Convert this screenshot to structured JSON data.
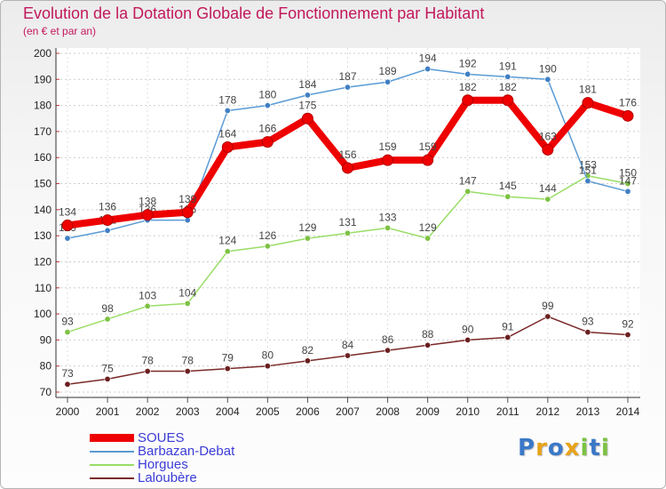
{
  "title": "Evolution de la Dotation Globale de Fonctionnement par Habitant",
  "subtitle": "(en € et par an)",
  "brand": {
    "letters": [
      {
        "ch": "P",
        "color": "#3a78c8"
      },
      {
        "ch": "r",
        "color": "#e8a31a"
      },
      {
        "ch": "o",
        "color": "#3a78c8"
      },
      {
        "ch": "x",
        "color": "#e8a31a"
      },
      {
        "ch": "i",
        "color": "#7cc242"
      },
      {
        "ch": "t",
        "color": "#3a78c8"
      },
      {
        "ch": "i",
        "color": "#7cc242"
      }
    ]
  },
  "chart_data": {
    "type": "line",
    "title": "Evolution de la Dotation Globale de Fonctionnement par Habitant",
    "subtitle": "(en € et par an)",
    "xlabel": "",
    "ylabel": "",
    "x": [
      2000,
      2001,
      2002,
      2003,
      2004,
      2005,
      2006,
      2007,
      2008,
      2009,
      2010,
      2011,
      2012,
      2013,
      2014
    ],
    "ylim": [
      70,
      200
    ],
    "yticks": [
      70,
      80,
      90,
      100,
      110,
      120,
      130,
      140,
      150,
      160,
      170,
      180,
      190,
      200
    ],
    "grid": "horizontal dotted",
    "legend_position": "bottom-left",
    "series": [
      {
        "name": "SOUES",
        "color": "#ee0000",
        "style": "bold",
        "values": [
          134,
          136,
          138,
          139,
          164,
          166,
          175,
          156,
          159,
          159,
          182,
          182,
          163,
          181,
          176
        ]
      },
      {
        "name": "Barbazan-Debat",
        "color": "#5a9bd5",
        "point_color": "#3f7fc4",
        "style": "thin",
        "values": [
          129,
          132,
          136,
          136,
          178,
          180,
          184,
          187,
          189,
          194,
          192,
          191,
          190,
          151,
          147
        ]
      },
      {
        "name": "Horgues",
        "color": "#99dd66",
        "point_color": "#7cc242",
        "style": "thin",
        "values": [
          93,
          98,
          103,
          104,
          124,
          126,
          129,
          131,
          133,
          129,
          147,
          145,
          144,
          153,
          150
        ]
      },
      {
        "name": "Laloubère",
        "color": "#7b2a2a",
        "point_color": "#6b1f1f",
        "style": "thin",
        "values": [
          73,
          75,
          78,
          78,
          79,
          80,
          82,
          84,
          86,
          88,
          90,
          91,
          99,
          93,
          92
        ]
      }
    ]
  }
}
